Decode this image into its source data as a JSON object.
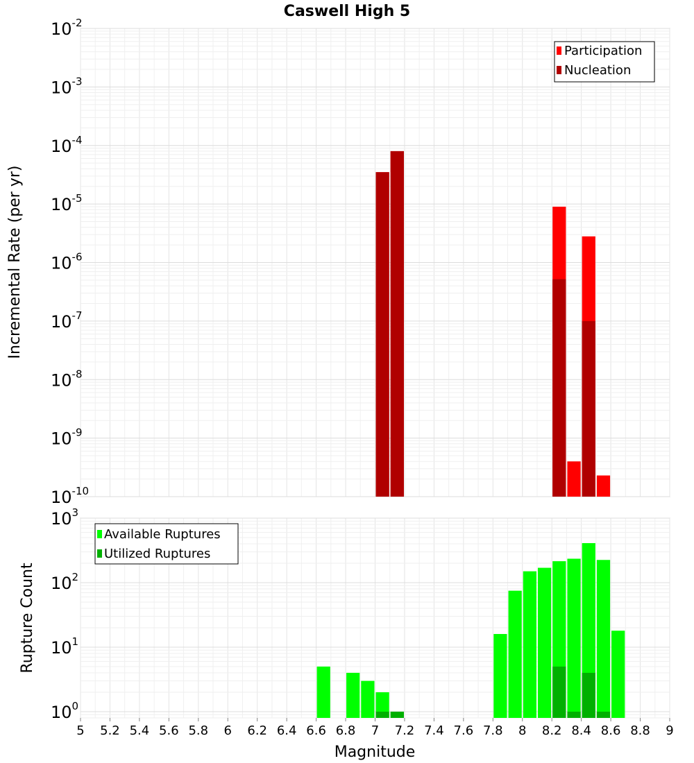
{
  "chart_data": [
    {
      "type": "bar",
      "title": "Caswell High 5",
      "xlabel": "Magnitude",
      "ylabel": "Incremental Rate (per yr)",
      "yscale": "log",
      "ylim": [
        1e-10,
        0.01
      ],
      "xlim": [
        5,
        9
      ],
      "bin_width": 0.1,
      "ytick_labels": [
        {
          "base": "10",
          "exp": "-10"
        },
        {
          "base": "10",
          "exp": "-9"
        },
        {
          "base": "10",
          "exp": "-8"
        },
        {
          "base": "10",
          "exp": "-7"
        },
        {
          "base": "10",
          "exp": "-6"
        },
        {
          "base": "10",
          "exp": "-5"
        },
        {
          "base": "10",
          "exp": "-4"
        },
        {
          "base": "10",
          "exp": "-3"
        },
        {
          "base": "10",
          "exp": "-2"
        }
      ],
      "legend": {
        "position": "top-right",
        "entries": [
          "Participation",
          "Nucleation"
        ]
      },
      "series": [
        {
          "name": "Participation",
          "color": "#ff0000",
          "points": [
            {
              "x": 7.05,
              "y": 3.5e-05
            },
            {
              "x": 7.15,
              "y": 8e-05
            },
            {
              "x": 8.25,
              "y": 9e-06
            },
            {
              "x": 8.35,
              "y": 4e-10
            },
            {
              "x": 8.45,
              "y": 2.8e-06
            },
            {
              "x": 8.55,
              "y": 2.3e-10
            }
          ]
        },
        {
          "name": "Nucleation",
          "color": "#b00000",
          "points": [
            {
              "x": 7.05,
              "y": 3.5e-05
            },
            {
              "x": 7.15,
              "y": 8e-05
            },
            {
              "x": 8.25,
              "y": 5.2e-07
            },
            {
              "x": 8.45,
              "y": 1e-07
            }
          ]
        }
      ]
    },
    {
      "type": "bar",
      "title": "",
      "xlabel": "Magnitude",
      "ylabel": "Rupture Count",
      "yscale": "log",
      "ylim": [
        0.8,
        1000
      ],
      "xlim": [
        5,
        9
      ],
      "bin_width": 0.1,
      "ytick_labels": [
        {
          "base": "10",
          "exp": "0",
          "value": 1
        },
        {
          "base": "10",
          "exp": "1",
          "value": 10
        },
        {
          "base": "10",
          "exp": "2",
          "value": 100
        },
        {
          "base": "10",
          "exp": "3",
          "value": 1000
        }
      ],
      "xtick_labels": [
        "5",
        "5.2",
        "5.4",
        "5.6",
        "5.8",
        "6",
        "6.2",
        "6.4",
        "6.6",
        "6.8",
        "7",
        "7.2",
        "7.4",
        "7.6",
        "7.8",
        "8",
        "8.2",
        "8.4",
        "8.6",
        "8.8",
        "9"
      ],
      "legend": {
        "position": "top-left",
        "entries": [
          "Available Ruptures",
          "Utilized Ruptures"
        ]
      },
      "series": [
        {
          "name": "Available Ruptures",
          "color": "#00ff00",
          "points": [
            {
              "x": 6.65,
              "y": 5
            },
            {
              "x": 6.85,
              "y": 4
            },
            {
              "x": 6.95,
              "y": 3
            },
            {
              "x": 7.05,
              "y": 2
            },
            {
              "x": 7.15,
              "y": 1
            },
            {
              "x": 7.85,
              "y": 16
            },
            {
              "x": 7.95,
              "y": 75
            },
            {
              "x": 8.05,
              "y": 150
            },
            {
              "x": 8.15,
              "y": 170
            },
            {
              "x": 8.25,
              "y": 215
            },
            {
              "x": 8.35,
              "y": 235
            },
            {
              "x": 8.45,
              "y": 410
            },
            {
              "x": 8.55,
              "y": 225
            },
            {
              "x": 8.65,
              "y": 18
            }
          ]
        },
        {
          "name": "Utilized Ruptures",
          "color": "#00b000",
          "points": [
            {
              "x": 7.05,
              "y": 1
            },
            {
              "x": 7.15,
              "y": 1
            },
            {
              "x": 8.25,
              "y": 5
            },
            {
              "x": 8.35,
              "y": 1
            },
            {
              "x": 8.45,
              "y": 4
            },
            {
              "x": 8.55,
              "y": 1
            }
          ]
        }
      ]
    }
  ]
}
